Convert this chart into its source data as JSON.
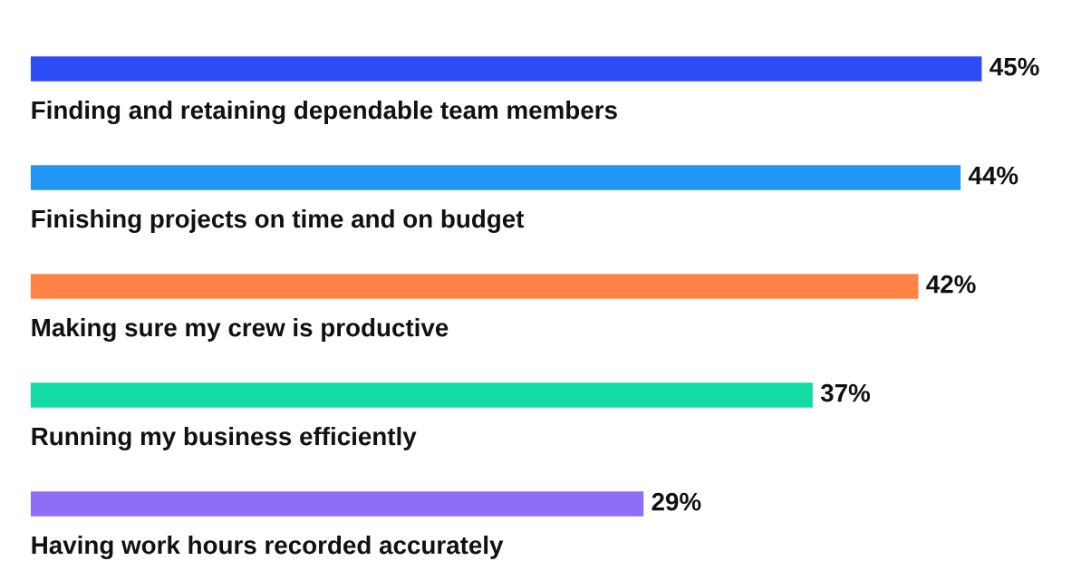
{
  "chart_data": {
    "type": "bar",
    "orientation": "horizontal",
    "value_labels": [
      "45%",
      "44%",
      "42%",
      "37%",
      "29%"
    ],
    "categories": [
      "Finding and retaining dependable team members",
      "Finishing projects on time and on budget",
      "Making sure my crew is productive",
      "Running my business efficiently",
      "Having work hours recorded accurately"
    ],
    "values": [
      45,
      44,
      42,
      37,
      29
    ],
    "colors": [
      "#2d4cf5",
      "#2196f7",
      "#ff8445",
      "#12dba3",
      "#8c6ef7"
    ]
  }
}
